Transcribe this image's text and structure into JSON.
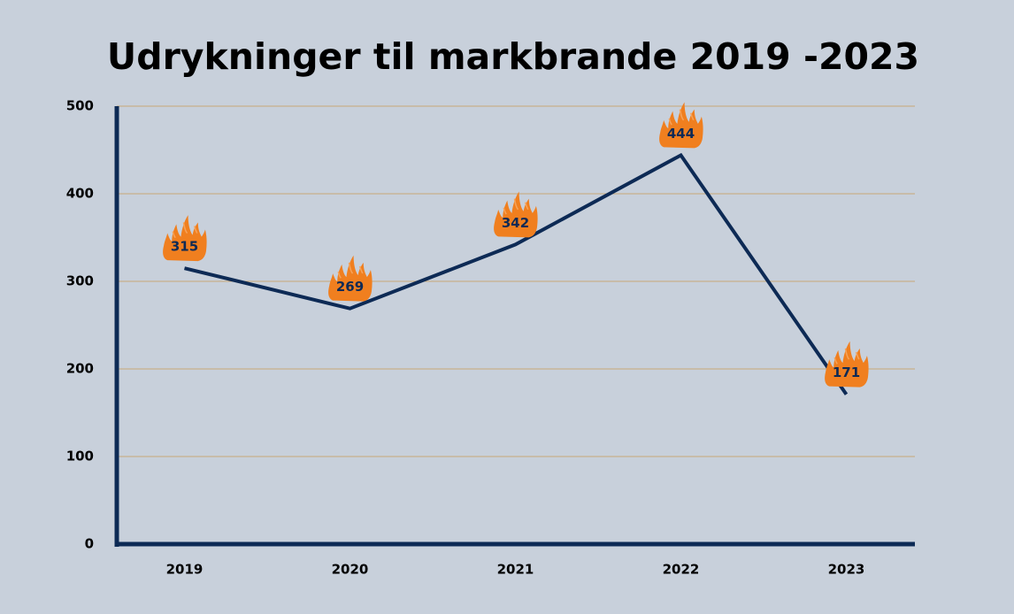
{
  "chart_data": {
    "type": "line",
    "title": "Udrykninger til markbrande 2019 -2023",
    "categories": [
      "2019",
      "2020",
      "2021",
      "2022",
      "2023"
    ],
    "values": [
      315,
      269,
      342,
      444,
      171
    ],
    "color": "#0d2a55",
    "ylim": [
      0,
      500
    ],
    "yticks": [
      0,
      100,
      200,
      300,
      400,
      500
    ],
    "grid": true
  }
}
